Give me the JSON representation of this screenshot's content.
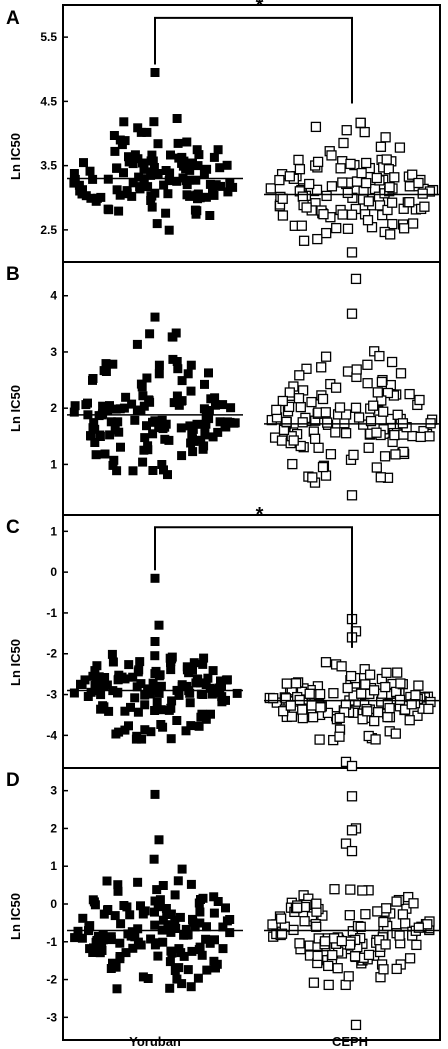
{
  "chart_data": [
    {
      "panel": "A",
      "type": "scatter",
      "ylabel": "Ln IC50",
      "yticks": [
        "2.5",
        "3.5",
        "4.5",
        "5.5"
      ],
      "ylim": [
        2.0,
        6.0
      ],
      "categories": [
        "Yoruban",
        "CEPH"
      ],
      "series": [
        {
          "name": "Yoruban",
          "marker": "filled-square",
          "mean": 3.3,
          "range": [
            2.45,
            4.25
          ],
          "outliers": [
            4.95
          ],
          "count": 120
        },
        {
          "name": "CEPH",
          "marker": "open-square",
          "mean": 3.05,
          "range": [
            2.3,
            4.25
          ],
          "outliers": [
            2.15
          ],
          "count": 120
        }
      ],
      "significance": {
        "label": "*",
        "y": 5.8
      }
    },
    {
      "panel": "B",
      "type": "scatter",
      "ylabel": "Ln IC50",
      "yticks": [
        "1",
        "2",
        "3",
        "4"
      ],
      "ylim": [
        0.1,
        4.6
      ],
      "categories": [
        "Yoruban",
        "CEPH"
      ],
      "series": [
        {
          "name": "Yoruban",
          "marker": "filled-square",
          "mean": 1.88,
          "range": [
            0.8,
            3.35
          ],
          "outliers": [
            3.62
          ],
          "count": 130
        },
        {
          "name": "CEPH",
          "marker": "open-square",
          "mean": 1.72,
          "range": [
            0.55,
            3.05
          ],
          "outliers": [
            3.68,
            4.3,
            0.45
          ],
          "count": 125
        }
      ]
    },
    {
      "panel": "C",
      "type": "scatter",
      "ylabel": "Ln IC50",
      "yticks": [
        "-4",
        "-3",
        "-2",
        "-1",
        "0",
        "1"
      ],
      "ylim": [
        -4.8,
        1.4
      ],
      "categories": [
        "Yoruban",
        "CEPH"
      ],
      "series": [
        {
          "name": "Yoruban",
          "marker": "filled-square",
          "mean": -2.9,
          "range": [
            -4.1,
            -2.0
          ],
          "outliers": [
            -0.15,
            -1.3,
            -1.7
          ],
          "count": 130
        },
        {
          "name": "CEPH",
          "marker": "open-square",
          "mean": -3.15,
          "range": [
            -4.2,
            -2.2
          ],
          "outliers": [
            -1.15,
            -1.45,
            -1.6,
            -4.65,
            -4.75
          ],
          "count": 130
        }
      ],
      "significance": {
        "label": "*",
        "y": 1.1
      }
    },
    {
      "panel": "D",
      "type": "scatter",
      "ylabel": "Ln IC50",
      "yticks": [
        "-3",
        "-2",
        "-1",
        "0",
        "1",
        "2",
        "3"
      ],
      "ylim": [
        -3.6,
        3.6
      ],
      "categories": [
        "Yoruban",
        "CEPH"
      ],
      "series": [
        {
          "name": "Yoruban",
          "marker": "filled-square",
          "mean": -0.7,
          "range": [
            -2.4,
            1.2
          ],
          "outliers": [
            2.9,
            1.7
          ],
          "count": 130
        },
        {
          "name": "CEPH",
          "marker": "open-square",
          "mean": -0.7,
          "range": [
            -2.2,
            0.5
          ],
          "outliers": [
            2.85,
            2.0,
            1.95,
            1.6,
            1.4,
            -3.2
          ],
          "count": 130
        }
      ]
    }
  ],
  "x_categories": [
    "Yoruban",
    "CEPH"
  ]
}
